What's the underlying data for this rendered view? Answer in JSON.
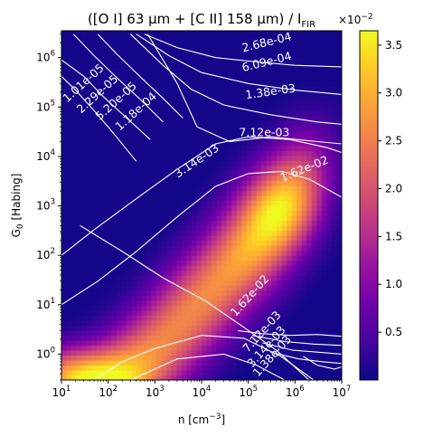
{
  "chart_data": {
    "type": "heatmap",
    "title": "([O I] 63 μm + [C II] 158 μm) / I",
    "title_subscript": "FIR",
    "xlabel": "n [cm",
    "xlabel_sup": "−3",
    "xlabel_end": "]",
    "ylabel": "G",
    "ylabel_sub": "0",
    "ylabel_end": " [Habing]",
    "x_scale": "log",
    "y_scale": "log",
    "xlim": [
      10,
      10000000
    ],
    "ylim": [
      0.3,
      3500000
    ],
    "x_ticks": [
      {
        "value": 10,
        "base": "10",
        "exp": "1"
      },
      {
        "value": 100,
        "base": "10",
        "exp": "2"
      },
      {
        "value": 1000,
        "base": "10",
        "exp": "3"
      },
      {
        "value": 10000,
        "base": "10",
        "exp": "4"
      },
      {
        "value": 100000,
        "base": "10",
        "exp": "5"
      },
      {
        "value": 1000000,
        "base": "10",
        "exp": "6"
      },
      {
        "value": 10000000,
        "base": "10",
        "exp": "7"
      }
    ],
    "y_ticks": [
      {
        "value": 1,
        "base": "10",
        "exp": "0"
      },
      {
        "value": 10,
        "base": "10",
        "exp": "1"
      },
      {
        "value": 100,
        "base": "10",
        "exp": "2"
      },
      {
        "value": 1000,
        "base": "10",
        "exp": "3"
      },
      {
        "value": 10000,
        "base": "10",
        "exp": "4"
      },
      {
        "value": 100000,
        "base": "10",
        "exp": "5"
      },
      {
        "value": 1000000,
        "base": "10",
        "exp": "6"
      }
    ],
    "colormap": "plasma",
    "colorbar": {
      "range": [
        0.0,
        3.65
      ],
      "ticks": [
        "0.5",
        "1.0",
        "1.5",
        "2.0",
        "2.5",
        "3.0",
        "3.5"
      ],
      "tick_values": [
        0.5,
        1.0,
        1.5,
        2.0,
        2.5,
        3.0,
        3.5
      ],
      "offset_base": "×10",
      "offset_exp": "−2"
    },
    "contour_labels": [
      {
        "text": "1.01e-05",
        "x": 30,
        "y": 300000,
        "angle": -42
      },
      {
        "text": "2.29e-05",
        "x": 60,
        "y": 180000,
        "angle": -42
      },
      {
        "text": "5.20e-05",
        "x": 150,
        "y": 130000,
        "angle": -42
      },
      {
        "text": "1.18e-04",
        "x": 400,
        "y": 80000,
        "angle": -42
      },
      {
        "text": "2.68e-04",
        "x": 250000,
        "y": 2000000,
        "angle": -14
      },
      {
        "text": "6.09e-04",
        "x": 250000,
        "y": 800000,
        "angle": -14
      },
      {
        "text": "1.38e-03",
        "x": 300000,
        "y": 200000,
        "angle": -8
      },
      {
        "text": "7.12e-03",
        "x": 220000,
        "y": 30000,
        "angle": 0
      },
      {
        "text": "3.14e-03",
        "x": 8000,
        "y": 8000,
        "angle": -34
      },
      {
        "text": "1.62e-02",
        "x": 1600000,
        "y": 5500,
        "angle": -22
      },
      {
        "text": "1.62e-02",
        "x": 110000,
        "y": 15,
        "angle": -48
      },
      {
        "text": "7.12e-03",
        "x": 200000,
        "y": 2.8,
        "angle": -48
      },
      {
        "text": "3.14e-03",
        "x": 250000,
        "y": 1.4,
        "angle": -48
      },
      {
        "text": "1.38e-03",
        "x": 330000,
        "y": 0.9,
        "angle": -48
      }
    ]
  },
  "colors": {
    "contour": "#ffffff",
    "background": "#ffffff"
  }
}
